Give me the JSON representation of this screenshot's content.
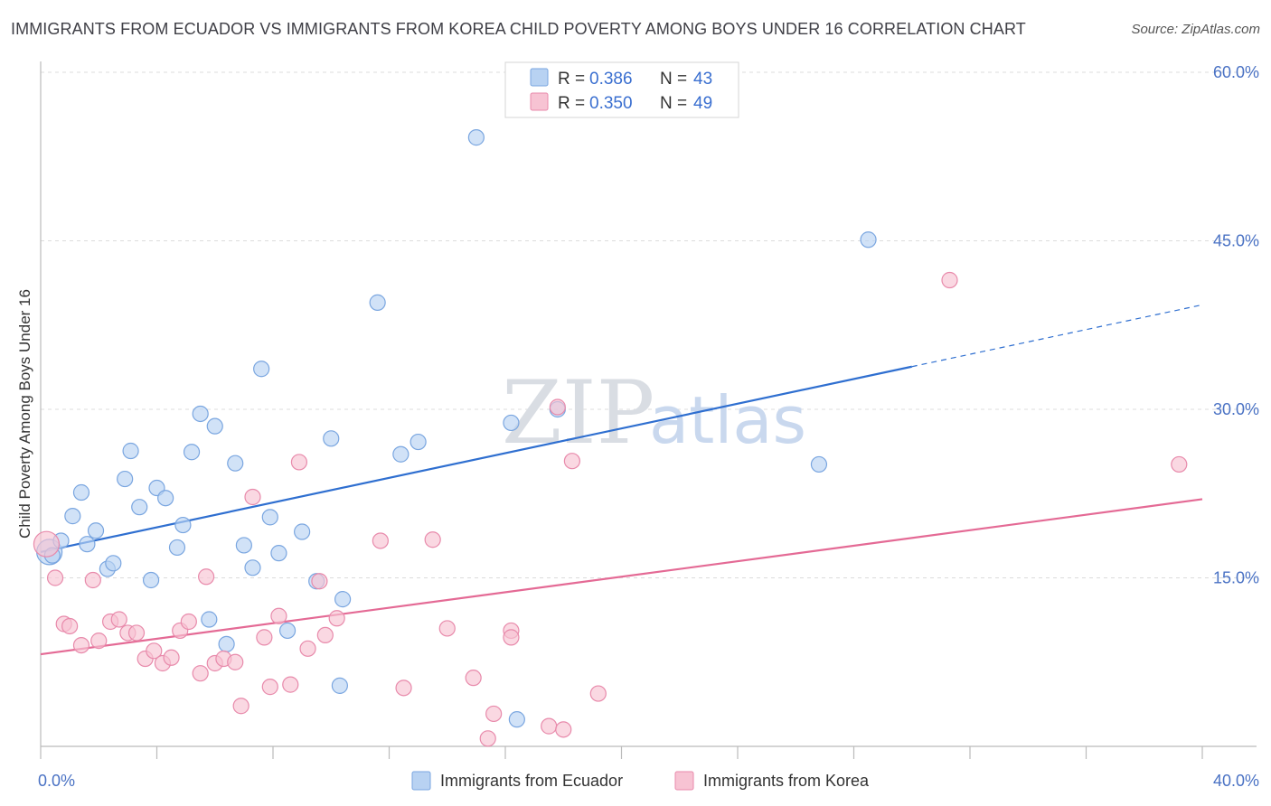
{
  "title": "IMMIGRANTS FROM ECUADOR VS IMMIGRANTS FROM KOREA CHILD POVERTY AMONG BOYS UNDER 16 CORRELATION CHART",
  "source": "Source: ZipAtlas.com",
  "watermark": {
    "zip": "ZIP",
    "atlas": "atlas"
  },
  "legend": {
    "r_label": "R =",
    "n_label": "N =",
    "ecuador": {
      "r": "0.386",
      "n": "43"
    },
    "korea": {
      "r": "0.350",
      "n": "49"
    }
  },
  "colors": {
    "ecuador_fill": "#b8d2f2",
    "ecuador_stroke": "#7aa6e0",
    "ecuador_line": "#2f6fd0",
    "korea_fill": "#f7c3d3",
    "korea_stroke": "#e88aab",
    "korea_line": "#e46a95",
    "grid": "#dcdcdc",
    "tick_text": "#4a72c4"
  },
  "chart_data": {
    "type": "scatter",
    "title": "IMMIGRANTS FROM ECUADOR VS IMMIGRANTS FROM KOREA CHILD POVERTY AMONG BOYS UNDER 16 CORRELATION CHART",
    "xlabel": "",
    "ylabel": "Child Poverty Among Boys Under 16",
    "xlim": [
      0,
      40
    ],
    "ylim": [
      0,
      60
    ],
    "x_tick_labels": [
      "0.0%",
      "40.0%"
    ],
    "y_ticks": [
      15,
      30,
      45,
      60
    ],
    "y_tick_labels": [
      "15.0%",
      "30.0%",
      "45.0%",
      "60.0%"
    ],
    "grid": true,
    "legend_position": "top-center",
    "series": [
      {
        "name": "Immigrants from Ecuador",
        "points": [
          [
            0.3,
            17.3
          ],
          [
            0.4,
            17.0
          ],
          [
            0.7,
            18.3
          ],
          [
            1.1,
            20.5
          ],
          [
            1.4,
            22.6
          ],
          [
            1.6,
            18.0
          ],
          [
            1.9,
            19.2
          ],
          [
            2.3,
            15.8
          ],
          [
            2.5,
            16.3
          ],
          [
            2.9,
            23.8
          ],
          [
            3.1,
            26.3
          ],
          [
            3.4,
            21.3
          ],
          [
            3.8,
            14.8
          ],
          [
            4.0,
            23.0
          ],
          [
            4.3,
            22.1
          ],
          [
            4.7,
            17.7
          ],
          [
            4.9,
            19.7
          ],
          [
            5.2,
            26.2
          ],
          [
            5.5,
            29.6
          ],
          [
            5.8,
            11.3
          ],
          [
            6.0,
            28.5
          ],
          [
            6.4,
            9.1
          ],
          [
            6.7,
            25.2
          ],
          [
            7.0,
            17.9
          ],
          [
            7.3,
            15.9
          ],
          [
            7.6,
            33.6
          ],
          [
            7.9,
            20.4
          ],
          [
            8.2,
            17.2
          ],
          [
            8.5,
            10.3
          ],
          [
            9.0,
            19.1
          ],
          [
            9.5,
            14.7
          ],
          [
            10.0,
            27.4
          ],
          [
            10.4,
            13.1
          ],
          [
            10.3,
            5.4
          ],
          [
            11.6,
            39.5
          ],
          [
            12.4,
            26.0
          ],
          [
            13.0,
            27.1
          ],
          [
            15.0,
            54.2
          ],
          [
            16.2,
            28.8
          ],
          [
            16.4,
            2.4
          ],
          [
            17.8,
            30.0
          ],
          [
            26.8,
            25.1
          ],
          [
            28.5,
            45.1
          ]
        ]
      },
      {
        "name": "Immigrants from Korea",
        "points": [
          [
            0.2,
            18.0
          ],
          [
            0.5,
            15.0
          ],
          [
            0.8,
            10.9
          ],
          [
            1.0,
            10.7
          ],
          [
            1.4,
            9.0
          ],
          [
            1.8,
            14.8
          ],
          [
            2.0,
            9.4
          ],
          [
            2.4,
            11.1
          ],
          [
            2.7,
            11.3
          ],
          [
            3.0,
            10.1
          ],
          [
            3.3,
            10.1
          ],
          [
            3.6,
            7.8
          ],
          [
            3.9,
            8.5
          ],
          [
            4.2,
            7.4
          ],
          [
            4.5,
            7.9
          ],
          [
            4.8,
            10.3
          ],
          [
            5.1,
            11.1
          ],
          [
            5.5,
            6.5
          ],
          [
            5.7,
            15.1
          ],
          [
            6.0,
            7.4
          ],
          [
            6.3,
            7.8
          ],
          [
            6.7,
            7.5
          ],
          [
            6.9,
            3.6
          ],
          [
            7.3,
            22.2
          ],
          [
            7.7,
            9.7
          ],
          [
            7.9,
            5.3
          ],
          [
            8.2,
            11.6
          ],
          [
            8.6,
            5.5
          ],
          [
            8.9,
            25.3
          ],
          [
            9.2,
            8.7
          ],
          [
            9.6,
            14.7
          ],
          [
            9.8,
            9.9
          ],
          [
            10.2,
            11.4
          ],
          [
            11.7,
            18.3
          ],
          [
            12.5,
            5.2
          ],
          [
            13.5,
            18.4
          ],
          [
            14.0,
            10.5
          ],
          [
            14.9,
            6.1
          ],
          [
            15.4,
            0.7
          ],
          [
            15.6,
            2.9
          ],
          [
            16.2,
            10.3
          ],
          [
            16.2,
            9.7
          ],
          [
            17.5,
            1.8
          ],
          [
            17.8,
            30.2
          ],
          [
            18.0,
            1.5
          ],
          [
            18.3,
            25.4
          ],
          [
            19.2,
            4.7
          ],
          [
            31.3,
            41.5
          ],
          [
            39.2,
            25.1
          ]
        ]
      }
    ],
    "trend_lines": [
      {
        "name": "Immigrants from Ecuador",
        "x_start": 0,
        "y_start": 17.3,
        "x_solid_end": 30.0,
        "x_end": 40,
        "y_end": 39.3
      },
      {
        "name": "Immigrants from Korea",
        "x_start": 0,
        "y_start": 8.2,
        "x_end": 40,
        "y_end": 22.0
      }
    ]
  }
}
